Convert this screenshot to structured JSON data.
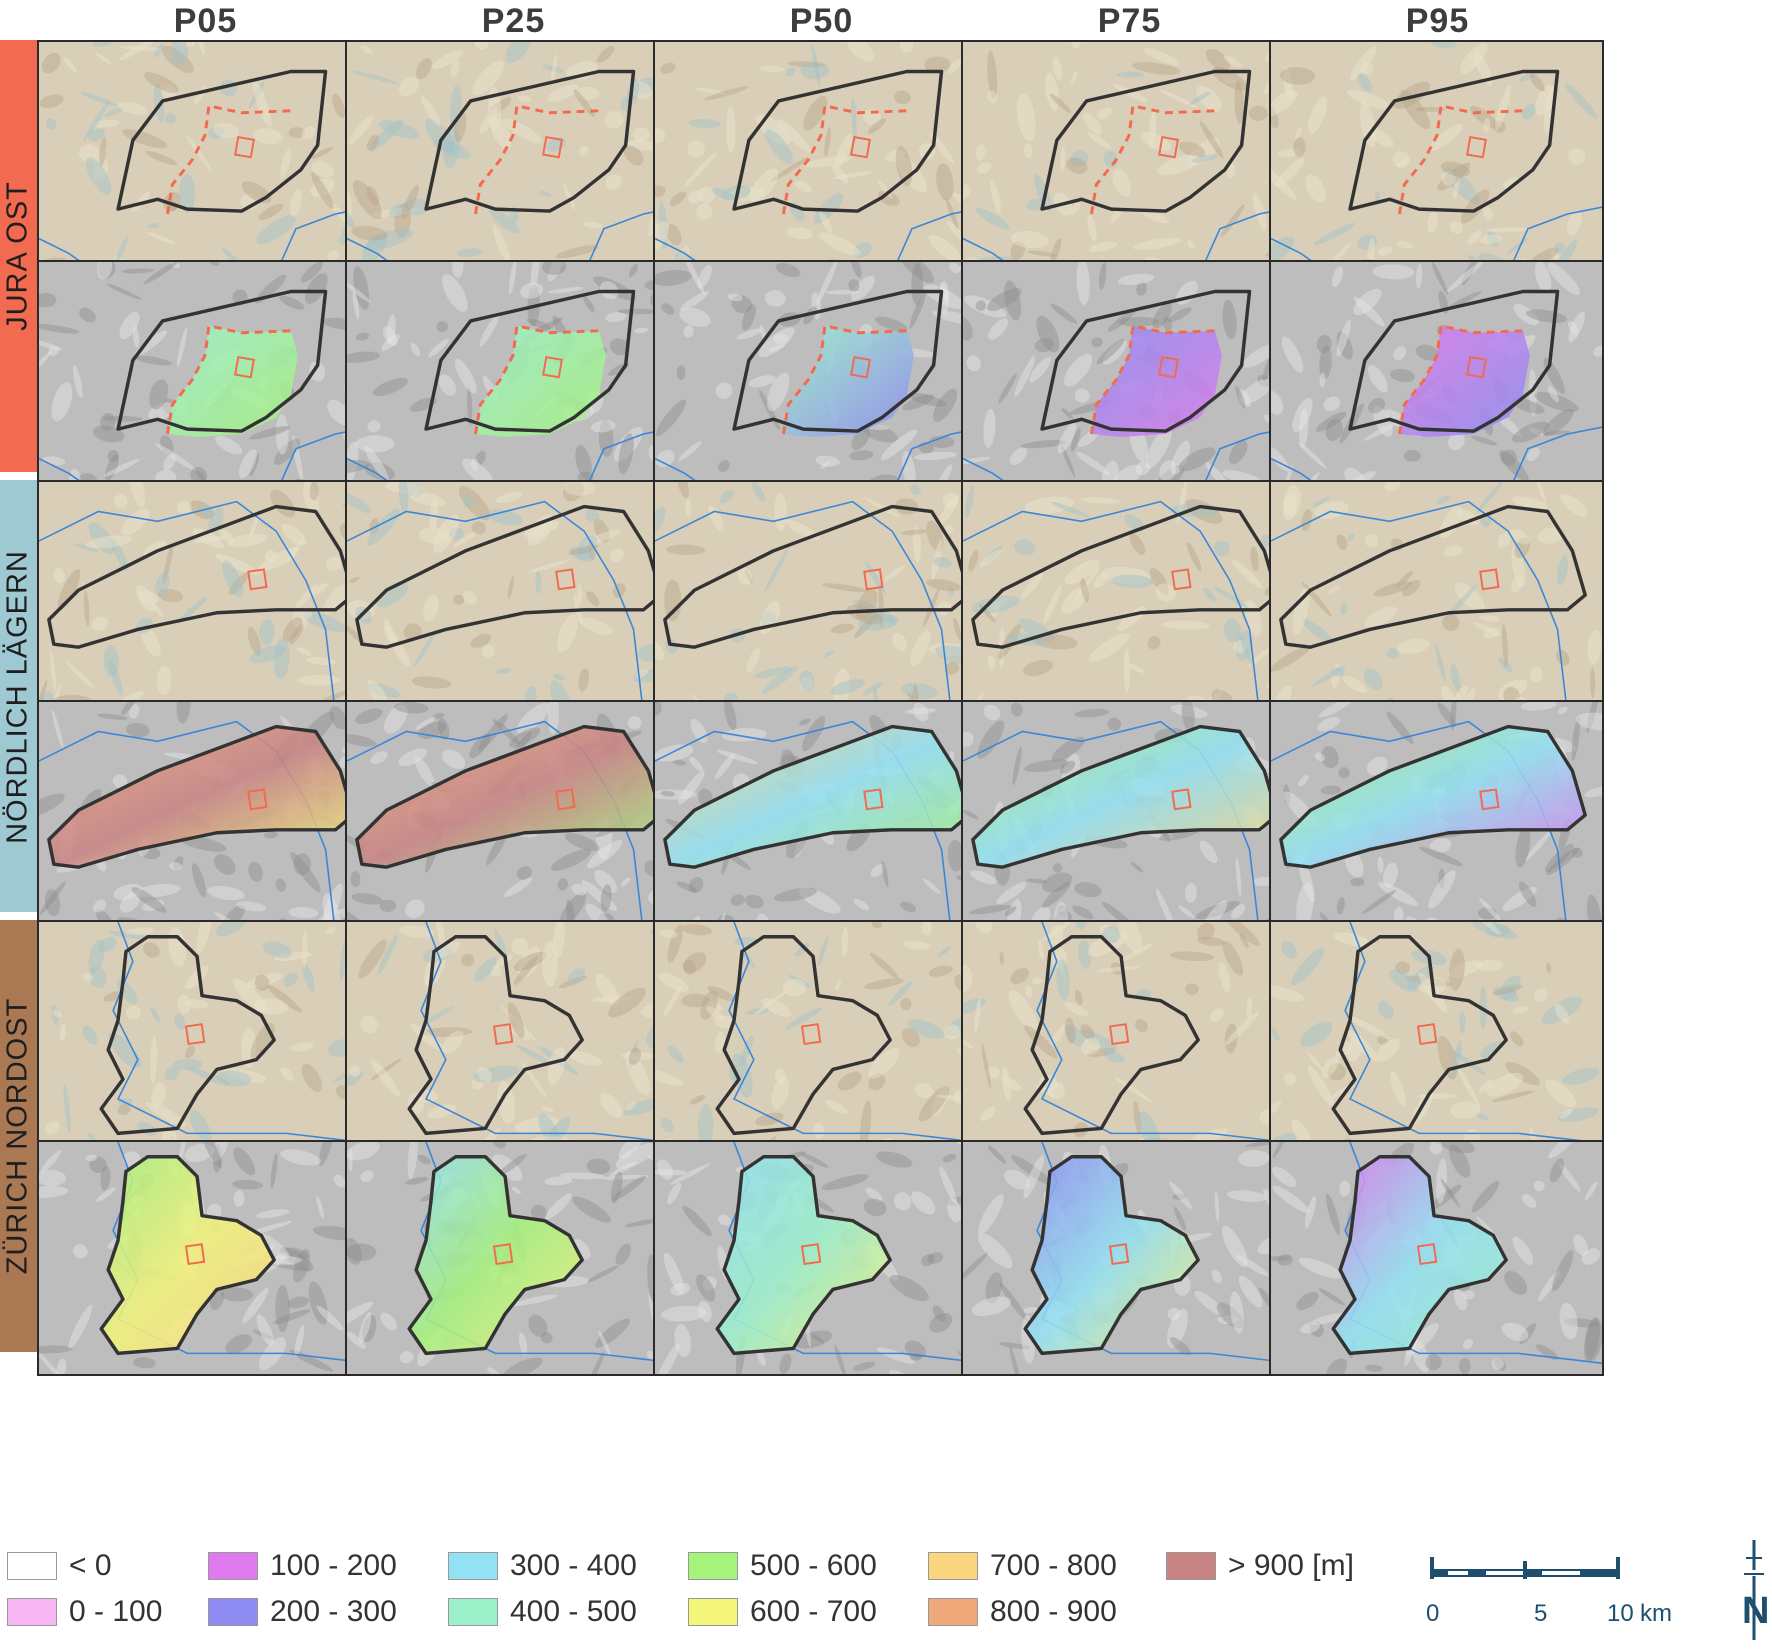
{
  "columns": [
    "P05",
    "P25",
    "P50",
    "P75",
    "P95"
  ],
  "regions": [
    {
      "label": "JURA OST",
      "color": "#f26a4f"
    },
    {
      "label": "NÖRDLICH LÄGERN",
      "color": "#9ec9d3"
    },
    {
      "label": "ZÜRICH NORDOST",
      "color": "#aa7954"
    }
  ],
  "legend": {
    "items": [
      {
        "label": "< 0",
        "color": "#ffffff"
      },
      {
        "label": "0 - 100",
        "color": "#f9b6f5"
      },
      {
        "label": "100 - 200",
        "color": "#dc7aee"
      },
      {
        "label": "200 - 300",
        "color": "#8e8cf3"
      },
      {
        "label": "300 - 400",
        "color": "#93e2f4"
      },
      {
        "label": "400 - 500",
        "color": "#9cf1cb"
      },
      {
        "label": "500 - 600",
        "color": "#a6f37c"
      },
      {
        "label": "600 - 700",
        "color": "#f4f57b"
      },
      {
        "label": "700 - 800",
        "color": "#fad67e"
      },
      {
        "label": "800 - 900",
        "color": "#efa97a"
      },
      {
        "label": "> 900 [m]",
        "color": "#c98383"
      }
    ]
  },
  "scale": {
    "ticks": [
      "0",
      "5",
      "10"
    ],
    "unit": "km"
  },
  "north_label": "N",
  "colors": {
    "outline": "#333333",
    "dashed_boundary": "#f26a4f",
    "river": "#3a86d8",
    "relief_color": "#d9cfb8",
    "relief_gray": "#bdbdbd"
  },
  "panels": {
    "top_row_type": "colored-relief-with-outline",
    "bottom_row_type": "depth-map-overlay",
    "jura_ost_fill": [
      [
        "#9cf1cb",
        "#a6f37c"
      ],
      [
        "#9cf1cb",
        "#a6f37c"
      ],
      [
        "#9cf1cb",
        "#8e8cf3"
      ],
      [
        "#8e8cf3",
        "#dc7aee"
      ],
      [
        "#dc7aee",
        "#8e8cf3"
      ]
    ],
    "noerdlich_laegern_fill": [
      [
        "#efa97a",
        "#c98383",
        "#f4f57b"
      ],
      [
        "#efa97a",
        "#c98383",
        "#a6f37c"
      ],
      [
        "#fad67e",
        "#93e2f4",
        "#a6f37c"
      ],
      [
        "#a6f37c",
        "#93e2f4",
        "#fad67e"
      ],
      [
        "#a6f37c",
        "#93e2f4",
        "#dc7aee"
      ]
    ],
    "zuerich_nordost_fill": [
      [
        "#a6f37c",
        "#f4f57b",
        "#fad67e"
      ],
      [
        "#93e2f4",
        "#a6f37c",
        "#f4f57b"
      ],
      [
        "#93e2f4",
        "#9cf1cb",
        "#f4f57b"
      ],
      [
        "#8e8cf3",
        "#93e2f4",
        "#f4f57b"
      ],
      [
        "#dc7aee",
        "#93e2f4",
        "#9cf1cb"
      ]
    ]
  }
}
